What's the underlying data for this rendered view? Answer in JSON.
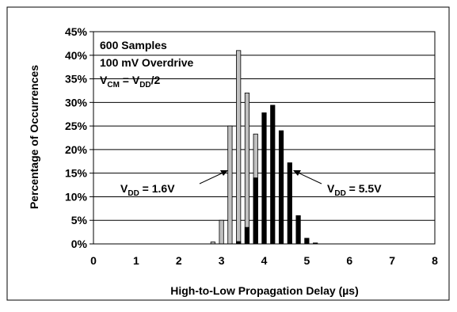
{
  "chart_data": {
    "type": "bar",
    "xlabel": "High-to-Low Propagation Delay (µs)",
    "ylabel": "Percentage of Occurrences",
    "xlim": [
      0,
      8
    ],
    "ylim": [
      0,
      45
    ],
    "x_ticks": [
      "0",
      "1",
      "2",
      "3",
      "4",
      "5",
      "6",
      "7",
      "8"
    ],
    "y_ticks": [
      "0%",
      "5%",
      "10%",
      "15%",
      "20%",
      "25%",
      "30%",
      "35%",
      "40%",
      "45%"
    ],
    "grid": true,
    "x": [
      2.8,
      3.0,
      3.2,
      3.4,
      3.6,
      3.8,
      4.0,
      4.2,
      4.4,
      4.6,
      4.8,
      5.0,
      5.2
    ],
    "series": [
      {
        "name": "VDD = 1.6V",
        "color": "#c0c0c0",
        "values": [
          0.4,
          5.0,
          25.0,
          41.0,
          32.0,
          23.3,
          4.8,
          0,
          0,
          0,
          0,
          0,
          0
        ]
      },
      {
        "name": "VDD = 5.5V",
        "color": "#000000",
        "values": [
          0,
          0,
          0,
          0.5,
          3.5,
          14.0,
          27.8,
          29.4,
          24.0,
          17.2,
          6.0,
          1.2,
          0.2
        ]
      }
    ],
    "annotations": {
      "line1": "600 Samples",
      "line2": "100 mV Overdrive",
      "vcm": {
        "v1": "V",
        "sub1": "CM",
        "eq": " = V",
        "sub2": "DD",
        "tail": "/2"
      },
      "vdd_low": {
        "v": "V",
        "sub": "DD",
        "rest": " = 1.6V"
      },
      "vdd_high": {
        "v": "V",
        "sub": "DD",
        "rest": " = 5.5V"
      }
    }
  }
}
